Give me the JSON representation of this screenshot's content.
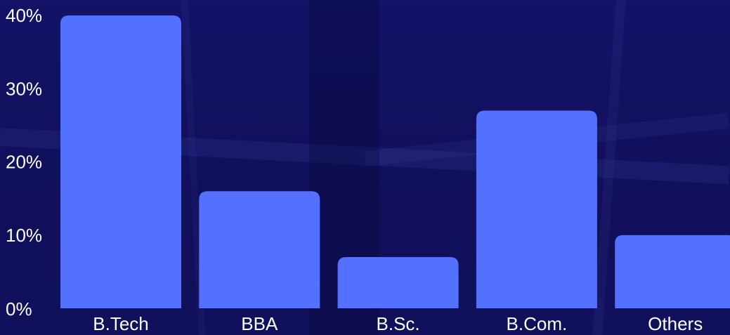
{
  "chart_data": {
    "type": "bar",
    "categories": [
      "B.Tech",
      "BBA",
      "B.Sc.",
      "B.Com.",
      "Others"
    ],
    "values": [
      40,
      16,
      7,
      27,
      10
    ],
    "y_ticks": [
      "0%",
      "10%",
      "20%",
      "30%",
      "40%"
    ],
    "ylim": [
      0,
      40
    ],
    "grid": false,
    "bar_color": "#5470ff",
    "background_color": "#12105e",
    "text_color": "#ffffff"
  }
}
